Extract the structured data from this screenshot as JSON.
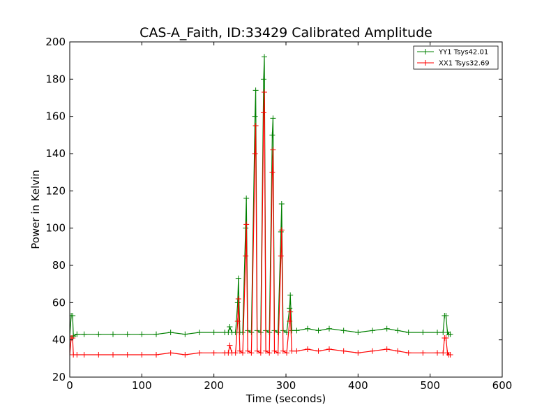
{
  "chart_data": {
    "type": "line",
    "title": "CAS-A_Faith, ID:33429 Calibrated Amplitude",
    "xlabel": "Time (seconds)",
    "ylabel": "Power in Kelvin",
    "xlim": [
      0,
      600
    ],
    "ylim": [
      20,
      200
    ],
    "xticks": [
      "0",
      "100",
      "200",
      "300",
      "400",
      "500",
      "600"
    ],
    "yticks": [
      "20",
      "40",
      "60",
      "80",
      "100",
      "120",
      "140",
      "160",
      "180",
      "200"
    ],
    "grid": false,
    "legend_position": "top-right",
    "marker": "plus",
    "series": [
      {
        "name": "YY1 Tsys42.01",
        "color": "#008000",
        "x": [
          0,
          2,
          4,
          5,
          10,
          20,
          40,
          60,
          80,
          100,
          120,
          140,
          160,
          180,
          200,
          215,
          220,
          222,
          225,
          230,
          233,
          234,
          236,
          240,
          244,
          245,
          247,
          252,
          257,
          258,
          260,
          265,
          269,
          270,
          272,
          277,
          281,
          282,
          284,
          289,
          293,
          294,
          296,
          301,
          305,
          306,
          308,
          315,
          330,
          345,
          360,
          380,
          400,
          420,
          440,
          455,
          470,
          490,
          510,
          518,
          520,
          522,
          524,
          526,
          528
        ],
        "y": [
          42,
          53,
          53,
          42,
          43,
          43,
          43,
          43,
          43,
          43,
          43,
          44,
          43,
          44,
          44,
          44,
          44,
          47,
          44,
          44,
          60,
          73,
          44,
          44,
          100,
          116,
          45,
          44,
          160,
          174,
          45,
          44,
          180,
          192,
          45,
          44,
          150,
          159,
          45,
          44,
          98,
          113,
          45,
          44,
          57,
          64,
          45,
          45,
          46,
          45,
          46,
          45,
          44,
          45,
          46,
          45,
          44,
          44,
          44,
          44,
          53,
          53,
          44,
          43,
          43
        ]
      },
      {
        "name": "XX1 Tsys32.69",
        "color": "#ff0000",
        "x": [
          0,
          2,
          4,
          5,
          10,
          20,
          40,
          60,
          80,
          100,
          120,
          140,
          160,
          180,
          200,
          215,
          220,
          222,
          225,
          230,
          233,
          234,
          236,
          240,
          244,
          245,
          247,
          252,
          257,
          258,
          260,
          265,
          269,
          270,
          272,
          277,
          281,
          282,
          284,
          289,
          293,
          294,
          296,
          301,
          305,
          306,
          308,
          315,
          330,
          345,
          360,
          380,
          400,
          420,
          440,
          455,
          470,
          490,
          510,
          518,
          520,
          522,
          524,
          526,
          528
        ],
        "y": [
          32,
          41,
          41,
          32,
          32,
          32,
          32,
          32,
          32,
          32,
          32,
          33,
          32,
          33,
          33,
          33,
          33,
          37,
          33,
          33,
          50,
          62,
          34,
          33,
          85,
          102,
          34,
          33,
          140,
          155,
          34,
          33,
          162,
          173,
          34,
          33,
          130,
          142,
          34,
          33,
          85,
          99,
          34,
          33,
          50,
          55,
          34,
          34,
          35,
          34,
          35,
          34,
          33,
          34,
          35,
          34,
          33,
          33,
          33,
          33,
          41,
          41,
          33,
          32,
          32
        ]
      }
    ]
  }
}
